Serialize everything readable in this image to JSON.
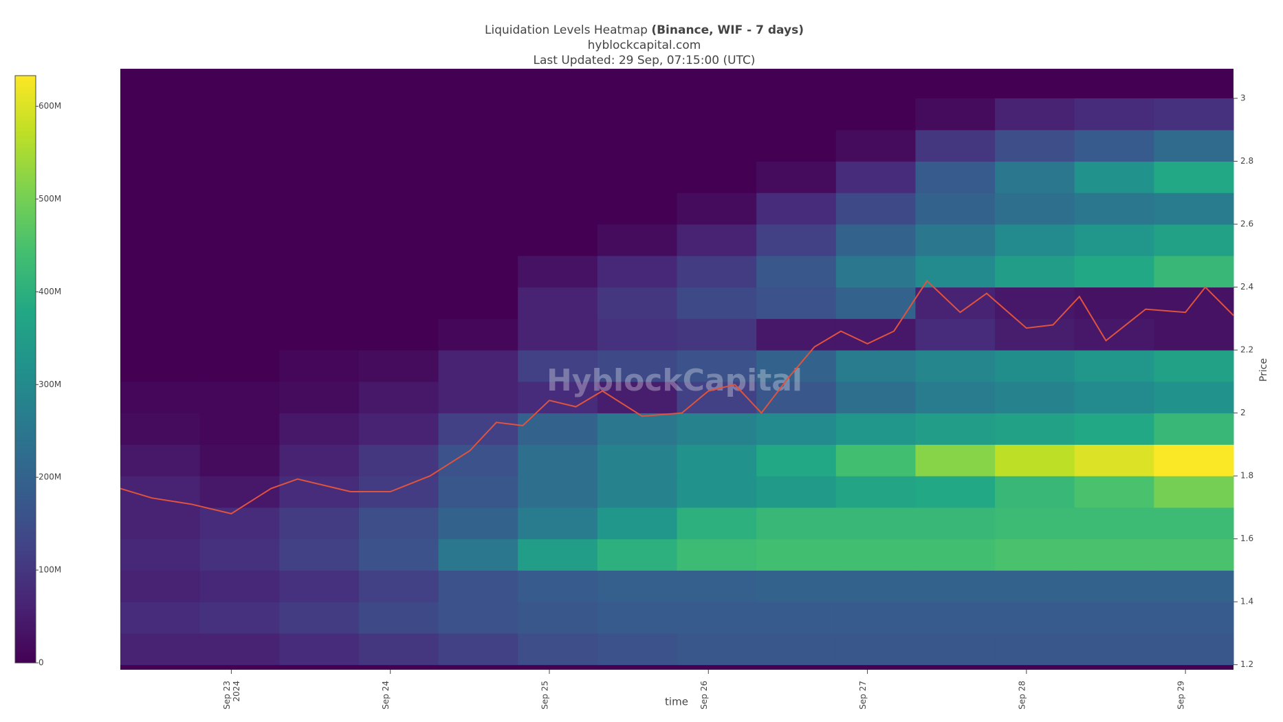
{
  "chart_data": {
    "type": "heatmap",
    "title": "Liquidation Levels Heatmap",
    "title_bold": "(Binance, WIF - 7 days)",
    "subtitle": "hyblockcapital.com",
    "subtitle2": "Last Updated: 29 Sep, 07:15:00 (UTC)",
    "watermark": "HyblockCapital",
    "x_label": "time",
    "y_label": "Price",
    "xlim": [
      "2024-09-22T07:15",
      "2024-09-29T07:15"
    ],
    "xticks": [
      {
        "value": "2024-09-23T00:00",
        "label": "Sep 23",
        "label2": "2024"
      },
      {
        "value": "2024-09-24T00:00",
        "label": "Sep 24"
      },
      {
        "value": "2024-09-25T00:00",
        "label": "Sep 25"
      },
      {
        "value": "2024-09-26T00:00",
        "label": "Sep 26"
      },
      {
        "value": "2024-09-27T00:00",
        "label": "Sep 27"
      },
      {
        "value": "2024-09-28T00:00",
        "label": "Sep 28"
      },
      {
        "value": "2024-09-29T00:00",
        "label": "Sep 29"
      }
    ],
    "ylim": [
      1.184,
      3.094
    ],
    "yticks": [
      1.2,
      1.4,
      1.6,
      1.8,
      2,
      2.2,
      2.4,
      2.6,
      2.8,
      3
    ],
    "zlim": [
      0,
      633
    ],
    "zticks": [
      {
        "value": 0,
        "label": "0"
      },
      {
        "value": 100,
        "label": "100M"
      },
      {
        "value": 200,
        "label": "200M"
      },
      {
        "value": 300,
        "label": "300M"
      },
      {
        "value": 400,
        "label": "400M"
      },
      {
        "value": 500,
        "label": "500M"
      },
      {
        "value": 600,
        "label": "600M"
      }
    ],
    "x_bins": [
      "2024-09-22T07:15",
      "2024-09-22T19:15",
      "2024-09-23T07:15",
      "2024-09-23T19:15",
      "2024-09-24T07:15",
      "2024-09-24T19:15",
      "2024-09-25T07:15",
      "2024-09-25T19:15",
      "2024-09-26T07:15",
      "2024-09-26T19:15",
      "2024-09-27T07:15",
      "2024-09-27T19:15",
      "2024-09-28T07:15",
      "2024-09-28T19:15",
      "2024-09-29T07:15"
    ],
    "y_bins": [
      1.2,
      1.3,
      1.4,
      1.5,
      1.6,
      1.7,
      1.8,
      1.9,
      2.0,
      2.1,
      2.2,
      2.3,
      2.4,
      2.5,
      2.6,
      2.7,
      2.8,
      2.9,
      3.0
    ],
    "z": [
      [
        60,
        60,
        80,
        100,
        120,
        150,
        160,
        170,
        170,
        170,
        170,
        170,
        170,
        170
      ],
      [
        80,
        90,
        110,
        140,
        160,
        170,
        180,
        180,
        180,
        180,
        180,
        180,
        180,
        180
      ],
      [
        60,
        70,
        90,
        120,
        160,
        180,
        190,
        190,
        200,
        200,
        200,
        200,
        200,
        200
      ],
      [
        70,
        90,
        120,
        160,
        250,
        350,
        400,
        430,
        440,
        440,
        440,
        450,
        450,
        450
      ],
      [
        60,
        80,
        110,
        150,
        200,
        260,
        330,
        400,
        420,
        420,
        420,
        430,
        430,
        430
      ],
      [
        60,
        40,
        80,
        110,
        170,
        230,
        280,
        320,
        340,
        370,
        380,
        420,
        450,
        500
      ],
      [
        40,
        20,
        60,
        100,
        160,
        230,
        280,
        320,
        380,
        440,
        520,
        570,
        600,
        630
      ],
      [
        20,
        10,
        40,
        60,
        120,
        200,
        250,
        280,
        300,
        330,
        350,
        360,
        380,
        420
      ],
      [
        10,
        10,
        20,
        40,
        60,
        80,
        50,
        120,
        170,
        230,
        260,
        280,
        300,
        320
      ],
      [
        0,
        0,
        10,
        20,
        60,
        120,
        140,
        160,
        200,
        260,
        290,
        310,
        330,
        360
      ],
      [
        0,
        0,
        0,
        0,
        10,
        60,
        90,
        100,
        40,
        40,
        80,
        50,
        40,
        30
      ],
      [
        0,
        0,
        0,
        0,
        0,
        60,
        100,
        140,
        160,
        200,
        60,
        40,
        30,
        30
      ],
      [
        0,
        0,
        0,
        0,
        0,
        30,
        70,
        110,
        170,
        250,
        300,
        350,
        380,
        420
      ],
      [
        0,
        0,
        0,
        0,
        0,
        0,
        20,
        60,
        120,
        200,
        250,
        300,
        330,
        360
      ],
      [
        0,
        0,
        0,
        0,
        0,
        0,
        0,
        20,
        80,
        140,
        200,
        230,
        250,
        260
      ],
      [
        0,
        0,
        0,
        0,
        0,
        0,
        0,
        0,
        20,
        80,
        180,
        250,
        320,
        380
      ],
      [
        0,
        0,
        0,
        0,
        0,
        0,
        0,
        0,
        0,
        20,
        100,
        150,
        180,
        220
      ],
      [
        0,
        0,
        0,
        0,
        0,
        0,
        0,
        0,
        0,
        0,
        20,
        60,
        80,
        90
      ]
    ],
    "colorscale": [
      "#440154",
      "#482475",
      "#414487",
      "#355f8d",
      "#2a788e",
      "#21918c",
      "#22a884",
      "#44bf70",
      "#7ad151",
      "#bddf26",
      "#fde725"
    ],
    "series": [
      {
        "name": "WIF",
        "color": "#e0533d",
        "x": [
          "2024-09-22T07:15",
          "2024-09-22T12:00",
          "2024-09-22T18:00",
          "2024-09-23T00:00",
          "2024-09-23T06:00",
          "2024-09-23T10:00",
          "2024-09-23T18:00",
          "2024-09-24T00:00",
          "2024-09-24T06:00",
          "2024-09-24T12:00",
          "2024-09-24T16:00",
          "2024-09-24T20:00",
          "2024-09-25T00:00",
          "2024-09-25T04:00",
          "2024-09-25T08:00",
          "2024-09-25T14:00",
          "2024-09-25T20:00",
          "2024-09-26T00:00",
          "2024-09-26T04:00",
          "2024-09-26T08:00",
          "2024-09-26T12:00",
          "2024-09-26T16:00",
          "2024-09-26T20:00",
          "2024-09-27T00:00",
          "2024-09-27T04:00",
          "2024-09-27T09:00",
          "2024-09-27T14:00",
          "2024-09-27T18:00",
          "2024-09-28T00:00",
          "2024-09-28T04:00",
          "2024-09-28T08:00",
          "2024-09-28T12:00",
          "2024-09-28T18:00",
          "2024-09-29T00:00",
          "2024-09-29T03:00",
          "2024-09-29T07:15"
        ],
        "values": [
          1.76,
          1.73,
          1.71,
          1.68,
          1.76,
          1.79,
          1.75,
          1.75,
          1.8,
          1.88,
          1.97,
          1.96,
          2.04,
          2.02,
          2.07,
          1.99,
          2.0,
          2.07,
          2.09,
          2.0,
          2.11,
          2.21,
          2.26,
          2.22,
          2.26,
          2.42,
          2.32,
          2.38,
          2.27,
          2.28,
          2.37,
          2.23,
          2.33,
          2.32,
          2.4,
          2.31
        ]
      }
    ]
  }
}
